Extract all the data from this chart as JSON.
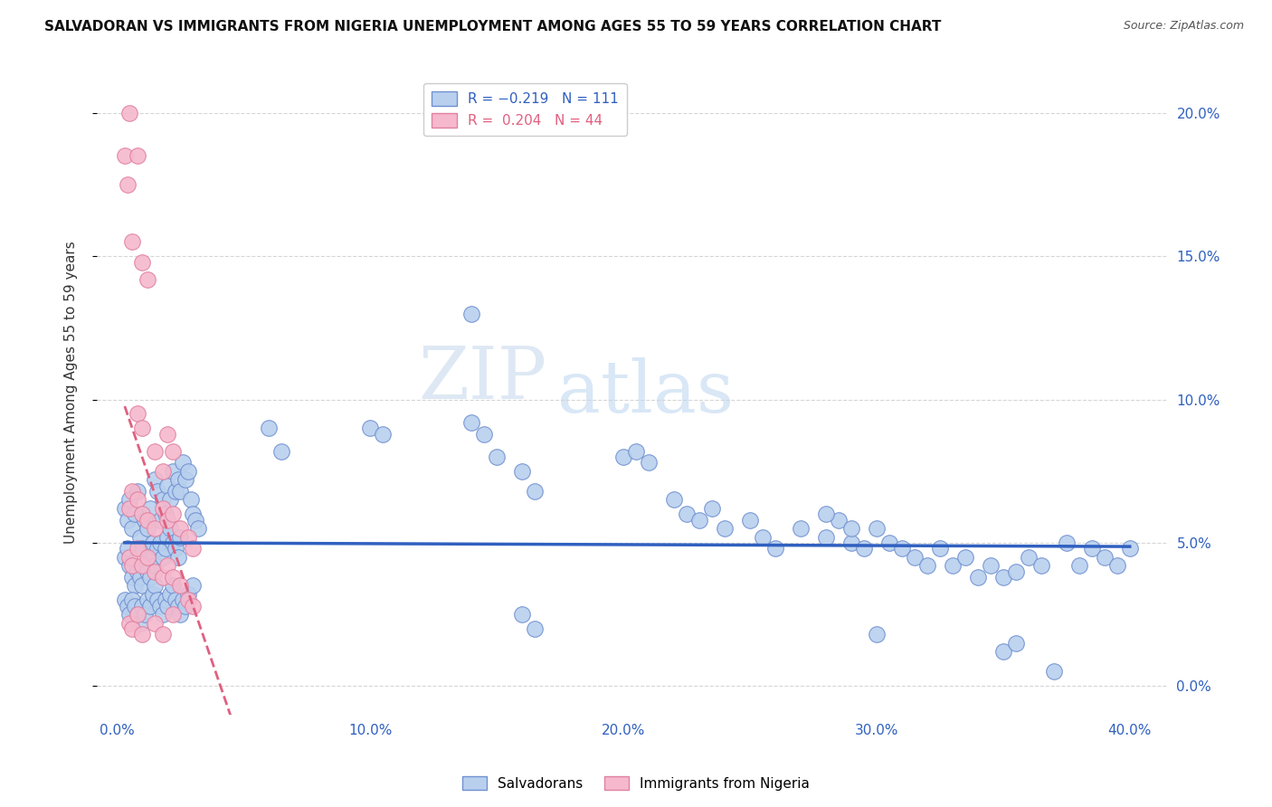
{
  "title": "SALVADORAN VS IMMIGRANTS FROM NIGERIA UNEMPLOYMENT AMONG AGES 55 TO 59 YEARS CORRELATION CHART",
  "source": "Source: ZipAtlas.com",
  "xlabel_ticks": [
    "0.0%",
    "10.0%",
    "20.0%",
    "30.0%",
    "40.0%"
  ],
  "xlabel_tick_vals": [
    0.0,
    0.1,
    0.2,
    0.3,
    0.4
  ],
  "ylabel": "Unemployment Among Ages 55 to 59 years",
  "ylabel_ticks": [
    "0.0%",
    "5.0%",
    "10.0%",
    "15.0%",
    "20.0%"
  ],
  "ylabel_tick_vals": [
    0.0,
    0.05,
    0.1,
    0.15,
    0.2
  ],
  "xlim": [
    -0.008,
    0.415
  ],
  "ylim": [
    -0.01,
    0.215
  ],
  "watermark_zip": "ZIP",
  "watermark_atlas": "atlas",
  "blue_line_color": "#3060c0",
  "pink_line_color": "#e06080",
  "scatter_blue_color": "#b8d0ee",
  "scatter_pink_color": "#f5b8cc",
  "scatter_blue_edge": "#7090d0",
  "scatter_pink_edge": "#e080a0",
  "background_color": "#ffffff",
  "grid_color": "#cccccc",
  "blue_scatter": [
    [
      0.003,
      0.062
    ],
    [
      0.004,
      0.058
    ],
    [
      0.005,
      0.065
    ],
    [
      0.006,
      0.055
    ],
    [
      0.007,
      0.06
    ],
    [
      0.008,
      0.068
    ],
    [
      0.009,
      0.052
    ],
    [
      0.01,
      0.048
    ],
    [
      0.011,
      0.058
    ],
    [
      0.012,
      0.055
    ],
    [
      0.013,
      0.062
    ],
    [
      0.014,
      0.05
    ],
    [
      0.015,
      0.072
    ],
    [
      0.016,
      0.068
    ],
    [
      0.017,
      0.058
    ],
    [
      0.018,
      0.065
    ],
    [
      0.019,
      0.06
    ],
    [
      0.02,
      0.07
    ],
    [
      0.021,
      0.065
    ],
    [
      0.022,
      0.075
    ],
    [
      0.023,
      0.068
    ],
    [
      0.024,
      0.072
    ],
    [
      0.025,
      0.068
    ],
    [
      0.026,
      0.078
    ],
    [
      0.027,
      0.072
    ],
    [
      0.028,
      0.075
    ],
    [
      0.029,
      0.065
    ],
    [
      0.03,
      0.06
    ],
    [
      0.031,
      0.058
    ],
    [
      0.032,
      0.055
    ],
    [
      0.003,
      0.045
    ],
    [
      0.004,
      0.048
    ],
    [
      0.005,
      0.042
    ],
    [
      0.006,
      0.038
    ],
    [
      0.007,
      0.035
    ],
    [
      0.008,
      0.04
    ],
    [
      0.009,
      0.038
    ],
    [
      0.01,
      0.035
    ],
    [
      0.011,
      0.042
    ],
    [
      0.012,
      0.04
    ],
    [
      0.013,
      0.038
    ],
    [
      0.014,
      0.045
    ],
    [
      0.015,
      0.042
    ],
    [
      0.016,
      0.048
    ],
    [
      0.017,
      0.05
    ],
    [
      0.018,
      0.045
    ],
    [
      0.019,
      0.048
    ],
    [
      0.02,
      0.052
    ],
    [
      0.021,
      0.055
    ],
    [
      0.022,
      0.05
    ],
    [
      0.023,
      0.048
    ],
    [
      0.024,
      0.045
    ],
    [
      0.025,
      0.052
    ],
    [
      0.003,
      0.03
    ],
    [
      0.004,
      0.028
    ],
    [
      0.005,
      0.025
    ],
    [
      0.006,
      0.03
    ],
    [
      0.007,
      0.028
    ],
    [
      0.008,
      0.025
    ],
    [
      0.009,
      0.022
    ],
    [
      0.01,
      0.028
    ],
    [
      0.011,
      0.025
    ],
    [
      0.012,
      0.03
    ],
    [
      0.013,
      0.028
    ],
    [
      0.014,
      0.032
    ],
    [
      0.015,
      0.035
    ],
    [
      0.016,
      0.03
    ],
    [
      0.017,
      0.028
    ],
    [
      0.018,
      0.025
    ],
    [
      0.019,
      0.03
    ],
    [
      0.02,
      0.028
    ],
    [
      0.021,
      0.032
    ],
    [
      0.022,
      0.035
    ],
    [
      0.023,
      0.03
    ],
    [
      0.024,
      0.028
    ],
    [
      0.025,
      0.025
    ],
    [
      0.026,
      0.03
    ],
    [
      0.027,
      0.028
    ],
    [
      0.028,
      0.032
    ],
    [
      0.03,
      0.035
    ],
    [
      0.06,
      0.09
    ],
    [
      0.065,
      0.082
    ],
    [
      0.1,
      0.09
    ],
    [
      0.105,
      0.088
    ],
    [
      0.14,
      0.092
    ],
    [
      0.145,
      0.088
    ],
    [
      0.15,
      0.08
    ],
    [
      0.16,
      0.075
    ],
    [
      0.165,
      0.068
    ],
    [
      0.2,
      0.08
    ],
    [
      0.205,
      0.082
    ],
    [
      0.21,
      0.078
    ],
    [
      0.22,
      0.065
    ],
    [
      0.225,
      0.06
    ],
    [
      0.23,
      0.058
    ],
    [
      0.235,
      0.062
    ],
    [
      0.24,
      0.055
    ],
    [
      0.25,
      0.058
    ],
    [
      0.255,
      0.052
    ],
    [
      0.26,
      0.048
    ],
    [
      0.27,
      0.055
    ],
    [
      0.28,
      0.052
    ],
    [
      0.285,
      0.058
    ],
    [
      0.29,
      0.05
    ],
    [
      0.295,
      0.048
    ],
    [
      0.3,
      0.055
    ],
    [
      0.305,
      0.05
    ],
    [
      0.31,
      0.048
    ],
    [
      0.315,
      0.045
    ],
    [
      0.32,
      0.042
    ],
    [
      0.325,
      0.048
    ],
    [
      0.33,
      0.042
    ],
    [
      0.335,
      0.045
    ],
    [
      0.34,
      0.038
    ],
    [
      0.345,
      0.042
    ],
    [
      0.35,
      0.038
    ],
    [
      0.355,
      0.04
    ],
    [
      0.36,
      0.045
    ],
    [
      0.365,
      0.042
    ],
    [
      0.37,
      0.005
    ],
    [
      0.375,
      0.05
    ],
    [
      0.38,
      0.042
    ],
    [
      0.385,
      0.048
    ],
    [
      0.39,
      0.045
    ],
    [
      0.395,
      0.042
    ],
    [
      0.4,
      0.048
    ],
    [
      0.14,
      0.13
    ],
    [
      0.28,
      0.06
    ],
    [
      0.29,
      0.055
    ],
    [
      0.3,
      0.018
    ],
    [
      0.35,
      0.012
    ],
    [
      0.355,
      0.015
    ],
    [
      0.16,
      0.025
    ],
    [
      0.165,
      0.02
    ]
  ],
  "pink_scatter": [
    [
      0.003,
      0.185
    ],
    [
      0.005,
      0.2
    ],
    [
      0.008,
      0.185
    ],
    [
      0.006,
      0.155
    ],
    [
      0.004,
      0.175
    ],
    [
      0.01,
      0.148
    ],
    [
      0.012,
      0.142
    ],
    [
      0.008,
      0.095
    ],
    [
      0.01,
      0.09
    ],
    [
      0.015,
      0.082
    ],
    [
      0.018,
      0.075
    ],
    [
      0.02,
      0.088
    ],
    [
      0.022,
      0.082
    ],
    [
      0.005,
      0.062
    ],
    [
      0.006,
      0.068
    ],
    [
      0.008,
      0.065
    ],
    [
      0.01,
      0.06
    ],
    [
      0.012,
      0.058
    ],
    [
      0.015,
      0.055
    ],
    [
      0.018,
      0.062
    ],
    [
      0.02,
      0.058
    ],
    [
      0.022,
      0.06
    ],
    [
      0.025,
      0.055
    ],
    [
      0.028,
      0.052
    ],
    [
      0.03,
      0.048
    ],
    [
      0.005,
      0.045
    ],
    [
      0.006,
      0.042
    ],
    [
      0.008,
      0.048
    ],
    [
      0.01,
      0.042
    ],
    [
      0.012,
      0.045
    ],
    [
      0.015,
      0.04
    ],
    [
      0.018,
      0.038
    ],
    [
      0.02,
      0.042
    ],
    [
      0.022,
      0.038
    ],
    [
      0.025,
      0.035
    ],
    [
      0.028,
      0.03
    ],
    [
      0.03,
      0.028
    ],
    [
      0.005,
      0.022
    ],
    [
      0.006,
      0.02
    ],
    [
      0.008,
      0.025
    ],
    [
      0.01,
      0.018
    ],
    [
      0.015,
      0.022
    ],
    [
      0.018,
      0.018
    ],
    [
      0.022,
      0.025
    ]
  ]
}
